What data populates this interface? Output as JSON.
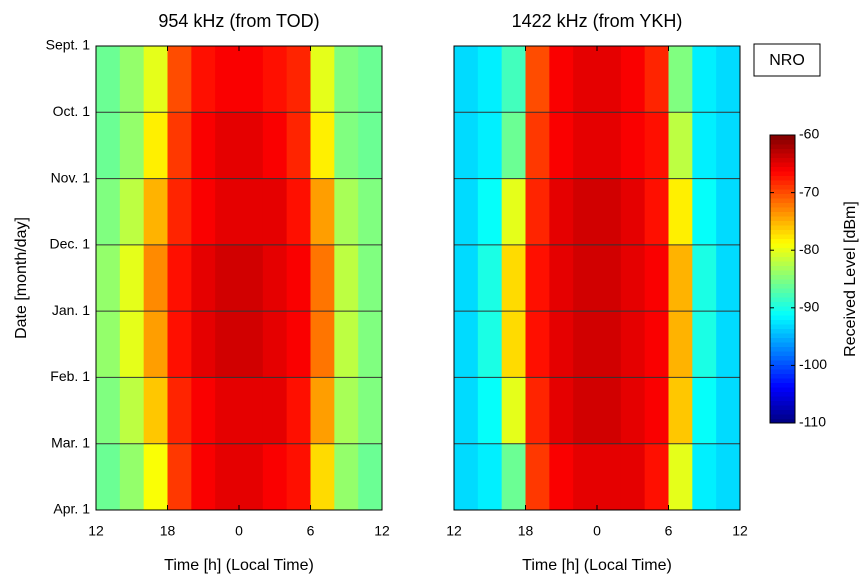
{
  "chart_data": [
    {
      "type": "heatmap",
      "title": "954 kHz (from TOD)",
      "xlabel": "Time [h] (Local Time)",
      "ylabel": "Date [month/day]",
      "xlim": [
        12,
        36
      ],
      "xticks": [
        12,
        18,
        {
          "value": 24,
          "label": "0"
        },
        {
          "value": 30,
          "label": "6"
        },
        {
          "value": 36,
          "label": "12"
        }
      ],
      "xbins": [
        12,
        14,
        16,
        18,
        20,
        22,
        24,
        26,
        28,
        30,
        32,
        34,
        36
      ],
      "y_labels": [
        "Sept. 1",
        "Oct. 1",
        "Nov. 1",
        "Dec. 1",
        "Jan. 1",
        "Feb. 1",
        "Mar. 1",
        "Apr. 1"
      ],
      "values": [
        [
          -86,
          -84,
          -80,
          -70,
          -67,
          -66,
          -66,
          -67,
          -68,
          -80,
          -85,
          -86
        ],
        [
          -86,
          -84,
          -78,
          -69,
          -66,
          -65,
          -65,
          -66,
          -68,
          -78,
          -85,
          -86
        ],
        [
          -85,
          -82,
          -75,
          -68,
          -66,
          -65,
          -65,
          -65,
          -67,
          -74,
          -83,
          -85
        ],
        [
          -84,
          -80,
          -73,
          -67,
          -65,
          -64,
          -64,
          -65,
          -66,
          -72,
          -82,
          -85
        ],
        [
          -84,
          -80,
          -74,
          -67,
          -65,
          -64,
          -64,
          -65,
          -66,
          -72,
          -82,
          -85
        ],
        [
          -85,
          -82,
          -76,
          -68,
          -66,
          -65,
          -65,
          -65,
          -67,
          -74,
          -83,
          -85
        ],
        [
          -86,
          -84,
          -79,
          -69,
          -66,
          -65,
          -65,
          -66,
          -67,
          -77,
          -84,
          -86
        ]
      ]
    },
    {
      "type": "heatmap",
      "title": "1422 kHz (from YKH)",
      "xlabel": "Time [h] (Local Time)",
      "annotation": "NRO",
      "xlim": [
        12,
        36
      ],
      "xticks": [
        12,
        18,
        {
          "value": 24,
          "label": "0"
        },
        {
          "value": 30,
          "label": "6"
        },
        {
          "value": 36,
          "label": "12"
        }
      ],
      "xbins": [
        12,
        14,
        16,
        18,
        20,
        22,
        24,
        26,
        28,
        30,
        32,
        34,
        36
      ],
      "values": [
        [
          -93,
          -92,
          -88,
          -70,
          -66,
          -65,
          -65,
          -66,
          -68,
          -85,
          -92,
          -93
        ],
        [
          -93,
          -92,
          -86,
          -69,
          -66,
          -65,
          -65,
          -66,
          -67,
          -82,
          -92,
          -93
        ],
        [
          -93,
          -91,
          -80,
          -68,
          -65,
          -64,
          -64,
          -65,
          -67,
          -78,
          -91,
          -93
        ],
        [
          -93,
          -90,
          -77,
          -67,
          -65,
          -64,
          -64,
          -65,
          -66,
          -75,
          -90,
          -93
        ],
        [
          -93,
          -90,
          -77,
          -67,
          -65,
          -64,
          -64,
          -65,
          -66,
          -75,
          -90,
          -93
        ],
        [
          -93,
          -91,
          -80,
          -68,
          -65,
          -64,
          -64,
          -65,
          -66,
          -76,
          -91,
          -93
        ],
        [
          -93,
          -92,
          -86,
          -69,
          -66,
          -65,
          -65,
          -65,
          -67,
          -80,
          -92,
          -93
        ]
      ]
    },
    {
      "type": "colorbar",
      "label": "Received Level [dBm]",
      "colormap": "jet",
      "ylim": [
        -110,
        -60
      ],
      "yticks": [
        -60,
        -70,
        -80,
        -90,
        -100,
        -110
      ]
    }
  ]
}
